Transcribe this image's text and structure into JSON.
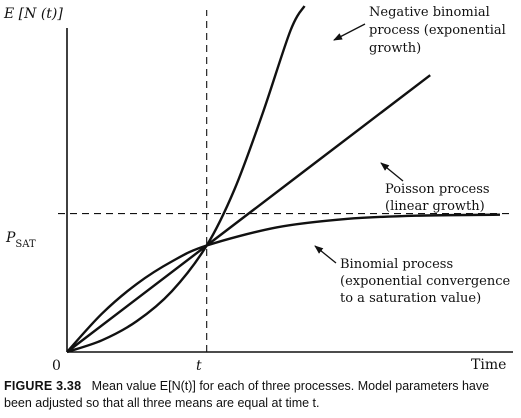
{
  "chart_data": {
    "type": "line",
    "ylabel": "E [N (t)]",
    "xlabel": "Time",
    "tick_labels": {
      "origin": "0",
      "t_mark": "t"
    },
    "reference_lines": {
      "vertical_at_t": 1.0,
      "horizontal_label": "P",
      "horizontal_label_sub": "SAT",
      "horizontal_value": 1.3
    },
    "x_range": [
      0,
      3.2
    ],
    "y_range": [
      0,
      3.25
    ],
    "series": [
      {
        "name": "Negative binomial process (exponential growth)",
        "label_lines": [
          "Negative binomial",
          "process (exponential",
          "growth)"
        ],
        "curve": "exponential",
        "x": [
          0,
          0.25,
          0.5,
          0.75,
          1.0,
          1.2,
          1.4,
          1.6,
          1.7
        ],
        "y": [
          0,
          0.11,
          0.29,
          0.57,
          1.0,
          1.53,
          2.24,
          3.02,
          3.25
        ]
      },
      {
        "name": "Poisson process (linear growth)",
        "label_lines": [
          "Poisson process",
          "(linear growth)"
        ],
        "curve": "linear",
        "x": [
          0,
          1.0,
          2.6
        ],
        "y": [
          0,
          1.0,
          2.6
        ]
      },
      {
        "name": "Binomial process (exponential convergence to a saturation value)",
        "label_lines": [
          "Binomial process",
          "(exponential convergence",
          "to a saturation value)"
        ],
        "curve": "saturating",
        "x": [
          0,
          0.25,
          0.5,
          0.75,
          1.0,
          1.5,
          2.0,
          2.5,
          3.1
        ],
        "y": [
          0,
          0.36,
          0.64,
          0.85,
          1.0,
          1.17,
          1.25,
          1.28,
          1.29
        ]
      }
    ]
  },
  "caption": {
    "figure_number": "FIGURE 3.38",
    "text": "Mean value E[N(t)] for each of three processes. Model parameters have been adjusted so that all three means are equal at time t."
  }
}
